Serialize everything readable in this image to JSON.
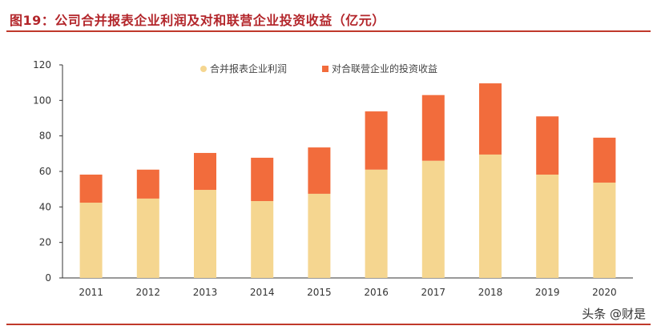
{
  "title": "图19：公司合并报表企业利润及对和联营企业投资收益（亿元）",
  "watermark": "头条 @财是",
  "chart_data": {
    "type": "bar",
    "stacked": true,
    "categories": [
      "2011",
      "2012",
      "2013",
      "2014",
      "2015",
      "2016",
      "2017",
      "2018",
      "2019",
      "2020"
    ],
    "series": [
      {
        "name": "合并报表企业利润",
        "color": "#F5D690",
        "values": [
          42.4,
          44.7,
          49.6,
          43.3,
          47.4,
          61,
          66,
          69.5,
          58.2,
          53.7
        ]
      },
      {
        "name": "对合联营企业的投资收益",
        "color": "#F26C3C",
        "values": [
          15.8,
          16.3,
          20.8,
          24.4,
          26.1,
          32.8,
          37,
          40.1,
          32.8,
          25.3
        ]
      }
    ],
    "ylim": [
      0,
      120
    ],
    "yticks": [
      0,
      20,
      40,
      60,
      80,
      100,
      120
    ],
    "legend": "top",
    "grid": false
  }
}
